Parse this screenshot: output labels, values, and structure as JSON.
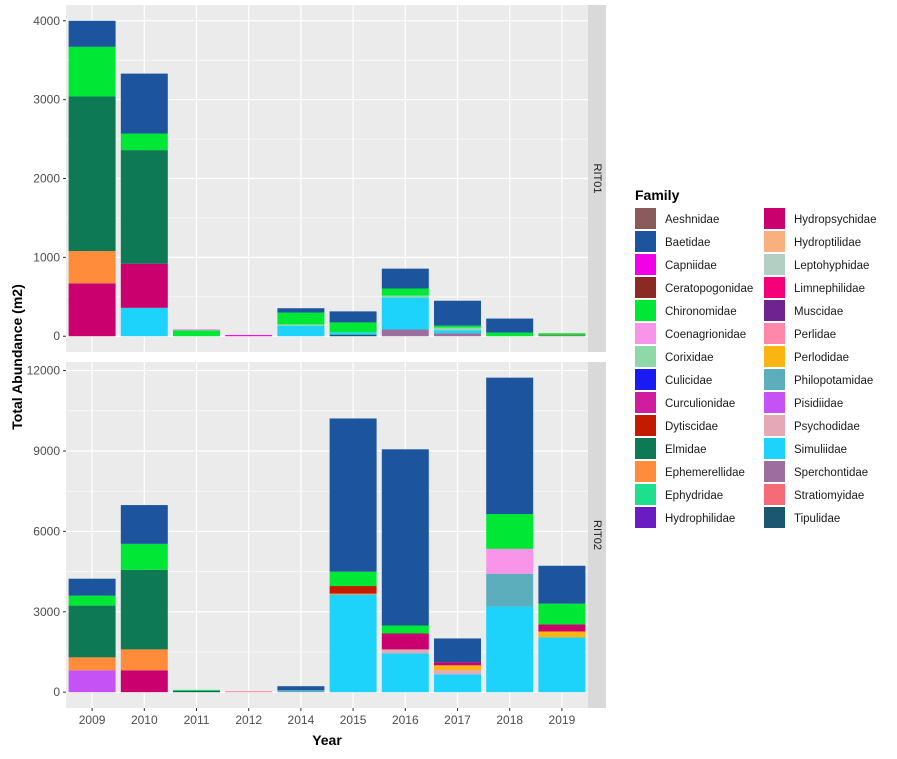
{
  "chart_data": {
    "type": "bar",
    "stacked": true,
    "xlabel": "Year",
    "ylabel": "Total Abundance (m2)",
    "categories": [
      "2009",
      "2010",
      "2011",
      "2012",
      "2014",
      "2015",
      "2016",
      "2017",
      "2018",
      "2019"
    ],
    "legend": {
      "title": "Family",
      "placement": "right",
      "entries": [
        {
          "name": "Aeshnidae",
          "color": "#8B5A5A"
        },
        {
          "name": "Baetidae",
          "color": "#1C559D"
        },
        {
          "name": "Capniidae",
          "color": "#F200E8"
        },
        {
          "name": "Ceratopogonidae",
          "color": "#8B2A22"
        },
        {
          "name": "Chironomidae",
          "color": "#00E836"
        },
        {
          "name": "Coenagrionidae",
          "color": "#F995E8"
        },
        {
          "name": "Corixidae",
          "color": "#8FD9A8"
        },
        {
          "name": "Culicidae",
          "color": "#1A1AF2"
        },
        {
          "name": "Curculionidae",
          "color": "#D01C9E"
        },
        {
          "name": "Dytiscidae",
          "color": "#C21B00"
        },
        {
          "name": "Elmidae",
          "color": "#0E7A55"
        },
        {
          "name": "Ephemerellidae",
          "color": "#FF8C3B"
        },
        {
          "name": "Ephydridae",
          "color": "#1CE08E"
        },
        {
          "name": "Hydrophilidae",
          "color": "#6B1BC2"
        },
        {
          "name": "Hydropsychidae",
          "color": "#CA006E"
        },
        {
          "name": "Hydroptilidae",
          "color": "#F7B07E"
        },
        {
          "name": "Leptohyphidae",
          "color": "#B3CEC2"
        },
        {
          "name": "Limnephilidae",
          "color": "#F50078"
        },
        {
          "name": "Muscidae",
          "color": "#6E2490"
        },
        {
          "name": "Perlidae",
          "color": "#FF88AA"
        },
        {
          "name": "Perlodidae",
          "color": "#FAB512"
        },
        {
          "name": "Philopotamidae",
          "color": "#5DAEBD"
        },
        {
          "name": "Pisidiidae",
          "color": "#C452F5"
        },
        {
          "name": "Psychodidae",
          "color": "#E3A9B6"
        },
        {
          "name": "Simuliidae",
          "color": "#1DD3FC"
        },
        {
          "name": "Sperchontidae",
          "color": "#9B6E9E"
        },
        {
          "name": "Stratiomyidae",
          "color": "#F56B78"
        },
        {
          "name": "Tipulidae",
          "color": "#1C5770"
        }
      ]
    },
    "panels": [
      {
        "strip": "RIT01",
        "ylim": [
          -200,
          4200
        ],
        "yticks": [
          0,
          1000,
          2000,
          3000,
          4000
        ],
        "grid": true,
        "stacks": [
          [
            [
              "Hydropsychidae",
              670
            ],
            [
              "Ephemerellidae",
              410
            ],
            [
              "Elmidae",
              1960
            ],
            [
              "Chironomidae",
              630
            ],
            [
              "Baetidae",
              330
            ]
          ],
          [
            [
              "Simuliidae",
              360
            ],
            [
              "Hydropsychidae",
              560
            ],
            [
              "Elmidae",
              1440
            ],
            [
              "Chironomidae",
              210
            ],
            [
              "Baetidae",
              760
            ]
          ],
          [
            [
              "Chironomidae",
              75
            ],
            [
              "Coenagrionidae",
              15
            ]
          ],
          [
            [
              "Capniidae",
              15
            ]
          ],
          [
            [
              "Simuliidae",
              130
            ],
            [
              "Corixidae",
              20
            ],
            [
              "Chironomidae",
              150
            ],
            [
              "Baetidae",
              55
            ]
          ],
          [
            [
              "Tipulidae",
              20
            ],
            [
              "Simuliidae",
              30
            ],
            [
              "Chironomidae",
              125
            ],
            [
              "Baetidae",
              140
            ]
          ],
          [
            [
              "Sperchontidae",
              85
            ],
            [
              "Simuliidae",
              405
            ],
            [
              "Corixidae",
              25
            ],
            [
              "Chironomidae",
              90
            ],
            [
              "Baetidae",
              252
            ]
          ],
          [
            [
              "Sperchontidae",
              38
            ],
            [
              "Simuliidae",
              38
            ],
            [
              "Corixidae",
              34
            ],
            [
              "Chironomidae",
              25
            ],
            [
              "Baetidae",
              315
            ]
          ],
          [
            [
              "Chironomidae",
              46
            ],
            [
              "Baetidae",
              178
            ]
          ],
          [
            [
              "Aeshnidae",
              13
            ],
            [
              "Chironomidae",
              25
            ]
          ]
        ]
      },
      {
        "strip": "RIT02",
        "ylim": [
          -590,
          12320
        ],
        "yticks": [
          0,
          3000,
          6000,
          9000,
          12000
        ],
        "grid": true,
        "stacks": [
          [
            [
              "Pisidiidae",
              817
            ],
            [
              "Ephemerellidae",
              483
            ],
            [
              "Elmidae",
              1931
            ],
            [
              "Chironomidae",
              371
            ],
            [
              "Baetidae",
              632
            ]
          ],
          [
            [
              "Hydropsychidae",
              817
            ],
            [
              "Ephemerellidae",
              780
            ],
            [
              "Elmidae",
              2971
            ],
            [
              "Chironomidae",
              966
            ],
            [
              "Baetidae",
              1448
            ]
          ],
          [
            [
              "Tipulidae",
              50
            ],
            [
              "Chironomidae",
              37
            ]
          ],
          [
            [
              "Stratiomyidae",
              30
            ]
          ],
          [
            [
              "Philopotamidae",
              74
            ],
            [
              "Baetidae",
              149
            ]
          ],
          [
            [
              "Simuliidae",
              3640
            ],
            [
              "Ephemerellidae",
              40
            ],
            [
              "Dytiscidae",
              280
            ],
            [
              "Chironomidae",
              534
            ],
            [
              "Baetidae",
              5719
            ]
          ],
          [
            [
              "Simuliidae",
              1448
            ],
            [
              "Psychodidae",
              149
            ],
            [
              "Hydropsychidae",
              594
            ],
            [
              "Chironomidae",
              297
            ],
            [
              "Baetidae",
              6574
            ]
          ],
          [
            [
              "Simuliidae",
              668
            ],
            [
              "Psychodidae",
              149
            ],
            [
              "Perlodidae",
              186
            ],
            [
              "Hydropsychidae",
              111
            ],
            [
              "Baetidae",
              891
            ]
          ],
          [
            [
              "Simuliidae",
              3194
            ],
            [
              "Philopotamidae",
              1226
            ],
            [
              "Coenagrionidae",
              928
            ],
            [
              "Chironomidae",
              1300
            ],
            [
              "Baetidae",
              5088
            ]
          ],
          [
            [
              "Simuliidae",
              2043
            ],
            [
              "Perlodidae",
              222
            ],
            [
              "Hydropsychidae",
              260
            ],
            [
              "Chironomidae",
              780
            ],
            [
              "Baetidae",
              1412
            ]
          ]
        ]
      }
    ]
  }
}
